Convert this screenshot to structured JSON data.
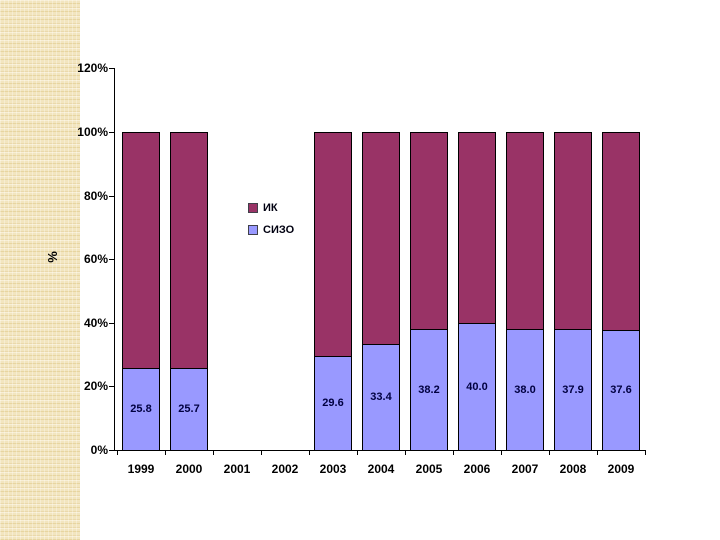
{
  "slide": {
    "background": "#ffffff",
    "decor_strip": {
      "base_color": "#f2e5bf",
      "light_line_color": "#f8efd6",
      "dark_line_color": "#e7d5a0"
    }
  },
  "chart_data": {
    "type": "bar",
    "subtype": "stacked-100-percent-column",
    "title": "",
    "xlabel": "",
    "ylabel": "%",
    "categories": [
      "1999",
      "2000",
      "2001",
      "2002",
      "2003",
      "2004",
      "2005",
      "2006",
      "2007",
      "2008",
      "2009"
    ],
    "series": [
      {
        "name": "ИК",
        "color": "#993366",
        "values": [
          74.2,
          74.3,
          null,
          null,
          70.4,
          66.6,
          61.8,
          60.0,
          62.0,
          62.1,
          62.4
        ]
      },
      {
        "name": "СИЗО",
        "color": "#9999ff",
        "values": [
          25.8,
          25.7,
          null,
          null,
          29.6,
          33.4,
          38.2,
          40.0,
          38.0,
          37.9,
          37.6
        ]
      }
    ],
    "value_labels": [
      "25.8",
      "25.7",
      "",
      "",
      "29.6",
      "33.4",
      "38.2",
      "40.0",
      "38.0",
      "37.9",
      "37.6"
    ],
    "value_labels_series": "СИЗО",
    "value_label_color": "#000040",
    "y_ticks": [
      {
        "label": "120%",
        "value": 120
      },
      {
        "label": "100%",
        "value": 100
      },
      {
        "label": "80%",
        "value": 80
      },
      {
        "label": "60%",
        "value": 60
      },
      {
        "label": "40%",
        "value": 40
      },
      {
        "label": "20%",
        "value": 20
      },
      {
        "label": "0%",
        "value": 0
      }
    ],
    "ylim": [
      0,
      120
    ],
    "grid": false,
    "legend": {
      "position": "middle-left-of-plot",
      "entries": [
        "ИК",
        "СИЗО"
      ]
    }
  }
}
